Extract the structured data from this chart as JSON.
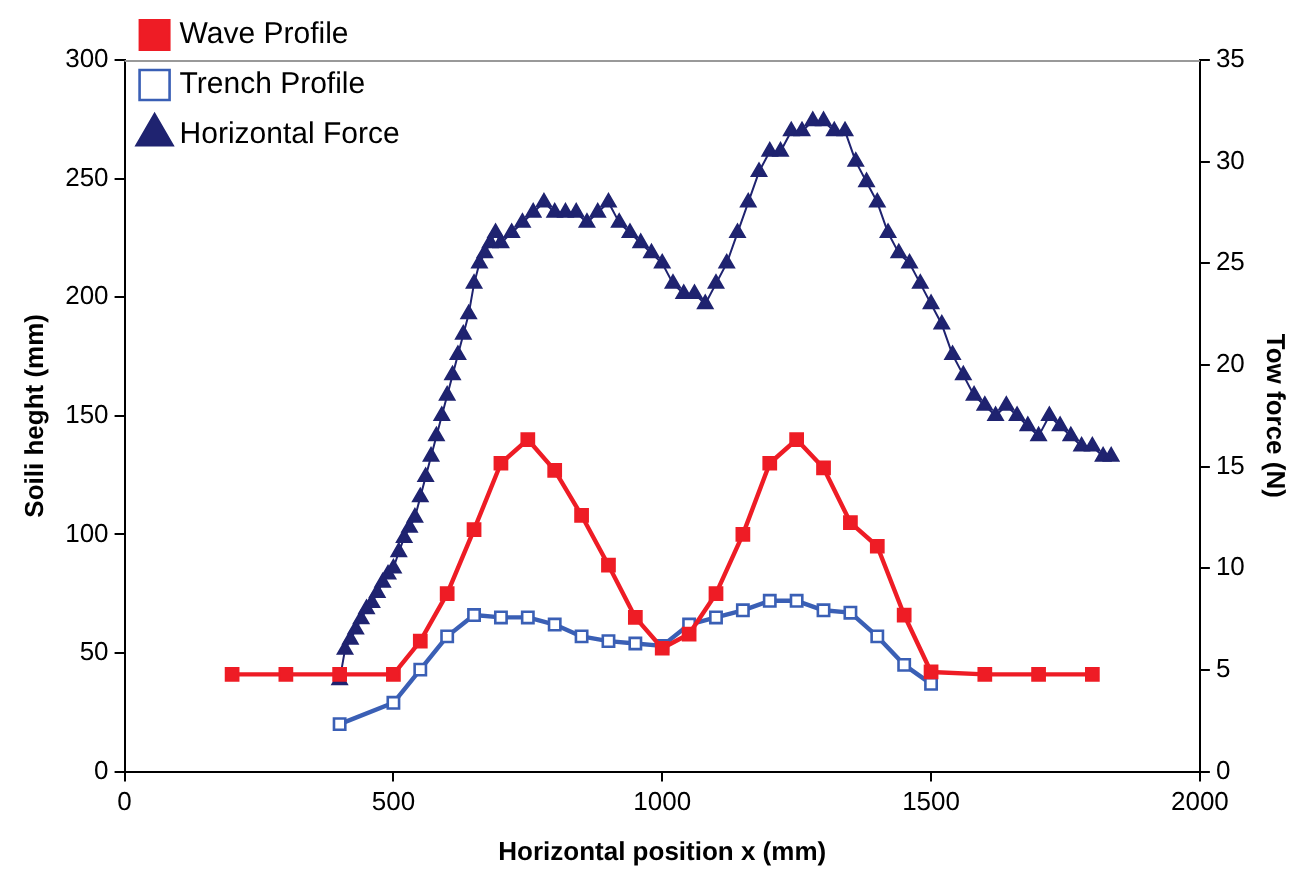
{
  "chart_data": {
    "type": "line",
    "xlabel": "Horizontal position x (mm)",
    "ylabel": "Soili heght (mm)",
    "y2label": "Tow force (N)",
    "xlim": [
      0,
      2000
    ],
    "xticks": [
      0,
      500,
      1000,
      1500,
      2000
    ],
    "ylim": [
      0,
      300
    ],
    "yticks": [
      0,
      50,
      100,
      150,
      200,
      250,
      300
    ],
    "y2lim": [
      0,
      35
    ],
    "y2ticks": [
      0,
      5,
      10,
      15,
      20,
      25,
      30,
      35
    ],
    "grid": false,
    "legend": "top left",
    "series": [
      {
        "name": "Wave Profile",
        "color": "#ee1c25",
        "marker": "square",
        "x": [
          200,
          300,
          400,
          500,
          550,
          600,
          650,
          700,
          750,
          800,
          850,
          900,
          950,
          1000,
          1050,
          1100,
          1150,
          1200,
          1250,
          1300,
          1350,
          1400,
          1450,
          1500,
          1600,
          1700,
          1800
        ],
        "values": [
          41,
          41,
          41,
          41,
          55,
          75,
          102,
          130,
          140,
          127,
          108,
          87,
          65,
          52,
          58,
          75,
          100,
          130,
          140,
          128,
          105,
          95,
          66,
          42,
          41,
          41,
          41
        ]
      },
      {
        "name": "Trench Profile",
        "color": "#3a5fb5",
        "marker": "square_open",
        "x": [
          400,
          500,
          550,
          600,
          650,
          700,
          750,
          800,
          850,
          900,
          950,
          1000,
          1050,
          1100,
          1150,
          1200,
          1250,
          1300,
          1350,
          1400,
          1450,
          1500
        ],
        "values": [
          20,
          29,
          43,
          57,
          66,
          65,
          65,
          62,
          57,
          55,
          54,
          53,
          62,
          65,
          68,
          72,
          72,
          68,
          67,
          57,
          45,
          37
        ]
      },
      {
        "name": "Horizontal Force",
        "color": "#1f2370",
        "marker": "triangle",
        "axis": "y2",
        "x": [
          400,
          410,
          420,
          430,
          440,
          450,
          460,
          470,
          480,
          490,
          500,
          510,
          520,
          530,
          540,
          550,
          560,
          570,
          580,
          590,
          600,
          610,
          620,
          630,
          640,
          650,
          660,
          670,
          680,
          690,
          700,
          720,
          740,
          760,
          780,
          800,
          820,
          840,
          860,
          880,
          900,
          920,
          940,
          960,
          980,
          1000,
          1020,
          1040,
          1060,
          1080,
          1100,
          1120,
          1140,
          1160,
          1180,
          1200,
          1220,
          1240,
          1260,
          1280,
          1300,
          1320,
          1340,
          1360,
          1380,
          1400,
          1420,
          1440,
          1460,
          1480,
          1500,
          1520,
          1540,
          1560,
          1580,
          1600,
          1620,
          1640,
          1660,
          1680,
          1700,
          1720,
          1740,
          1760,
          1780,
          1800,
          1820,
          1835
        ],
        "values": [
          4.5,
          6,
          6.5,
          7,
          7.5,
          8,
          8.3,
          8.8,
          9.3,
          9.7,
          10,
          10.8,
          11.5,
          12,
          12.5,
          13.5,
          14.5,
          15.5,
          16.5,
          17.5,
          18.5,
          19.5,
          20.5,
          21.5,
          22.5,
          24,
          25,
          25.5,
          26,
          26.5,
          26,
          26.5,
          27,
          27.5,
          28,
          27.5,
          27.5,
          27.5,
          27,
          27.5,
          28,
          27,
          26.5,
          26,
          25.5,
          25,
          24,
          23.5,
          23.5,
          23,
          24,
          25,
          26.5,
          28,
          29.5,
          30.5,
          30.5,
          31.5,
          31.5,
          32,
          32,
          31.5,
          31.5,
          30,
          29,
          28,
          26.5,
          25.5,
          25,
          24,
          23,
          22,
          20.5,
          19.5,
          18.5,
          18,
          17.5,
          18,
          17.5,
          17,
          16.5,
          17.5,
          17,
          16.5,
          16,
          16,
          15.5,
          15.5
        ]
      }
    ]
  }
}
